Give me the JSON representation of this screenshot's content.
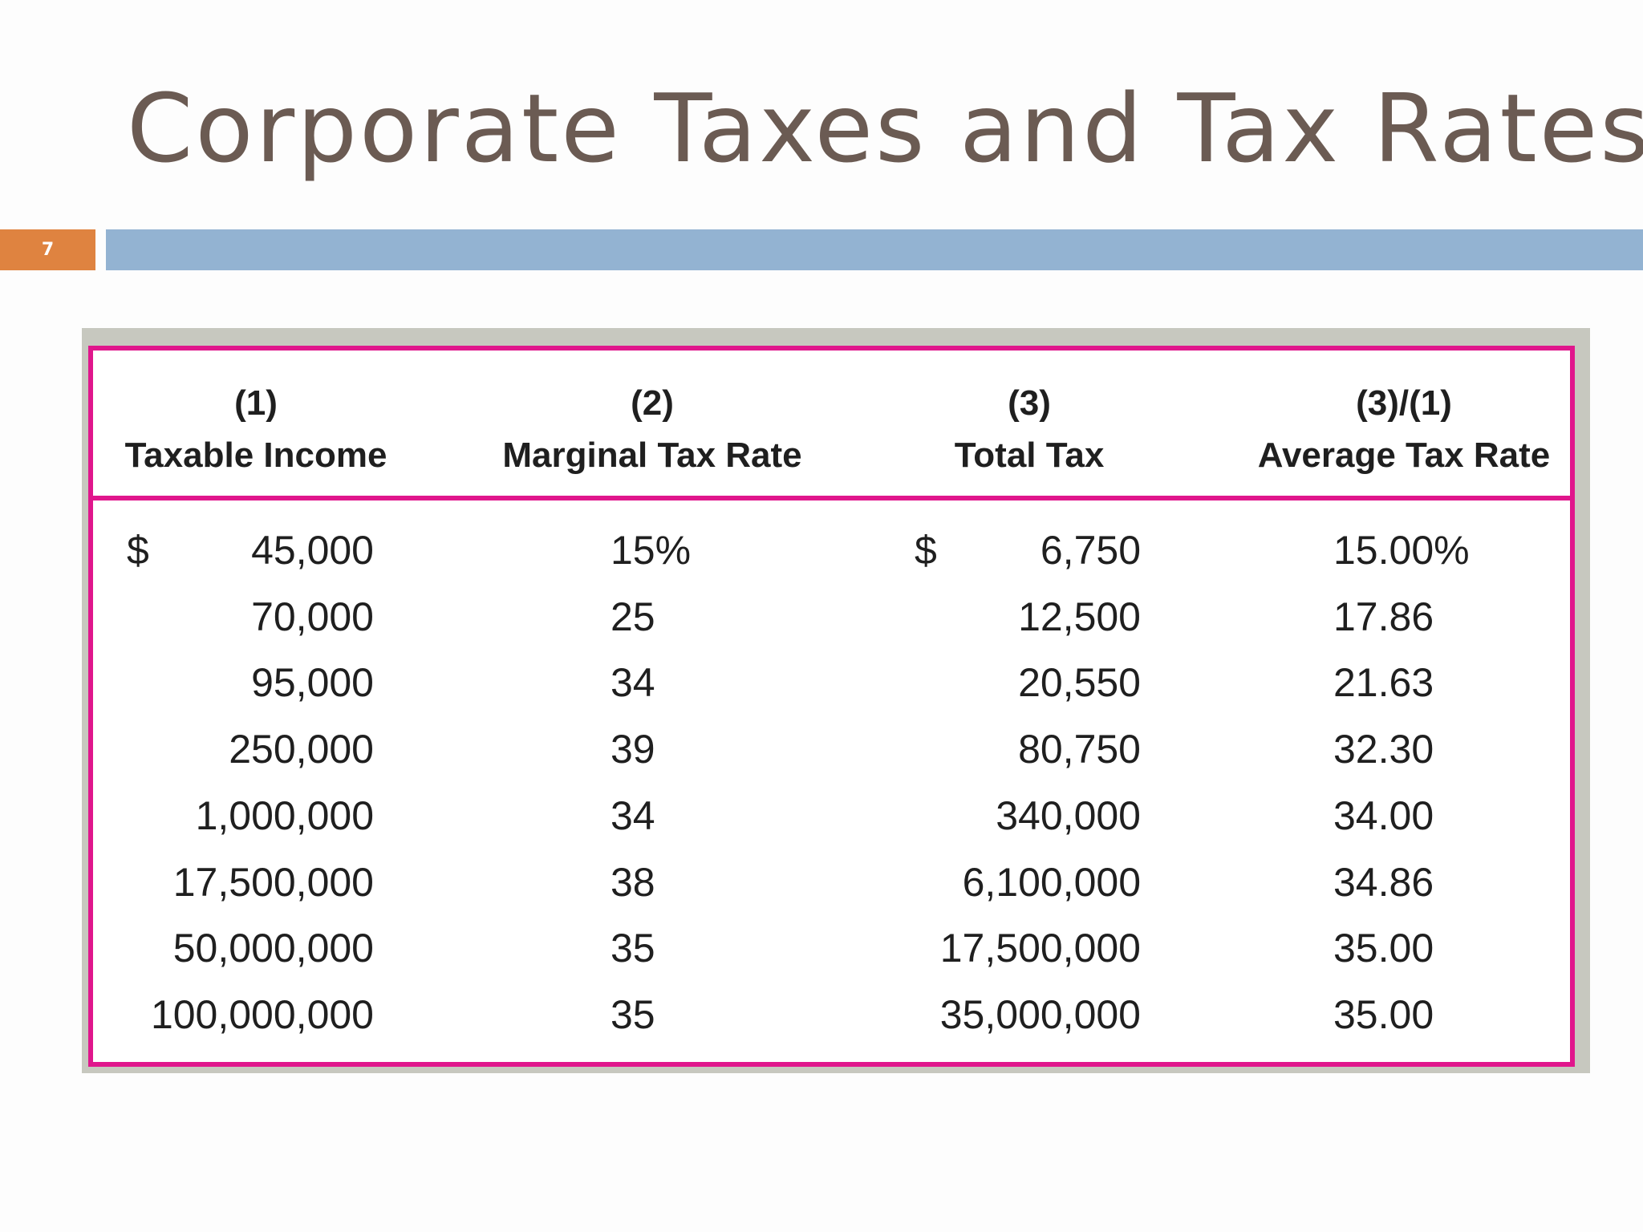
{
  "slide": {
    "title": "Corporate Taxes and Tax Rates",
    "page_number": "7"
  },
  "colors": {
    "title": "#6b5b53",
    "page_badge": "#df8340",
    "accent_bar": "#93b3d2",
    "table_border": "#e0168c",
    "table_frame": "#c7c8bf"
  },
  "table": {
    "columns": [
      {
        "number": "(1)",
        "label": "Taxable Income"
      },
      {
        "number": "(2)",
        "label": "Marginal Tax Rate"
      },
      {
        "number": "(3)",
        "label": "Total Tax"
      },
      {
        "number": "(3)/(1)",
        "label": "Average Tax Rate"
      }
    ],
    "currency_symbol": "$",
    "rows": [
      {
        "taxable_income": "45,000",
        "marginal_rate": "15%",
        "total_tax": "6,750",
        "average_rate": "15.00%"
      },
      {
        "taxable_income": "70,000",
        "marginal_rate": "25",
        "total_tax": "12,500",
        "average_rate": "17.86"
      },
      {
        "taxable_income": "95,000",
        "marginal_rate": "34",
        "total_tax": "20,550",
        "average_rate": "21.63"
      },
      {
        "taxable_income": "250,000",
        "marginal_rate": "39",
        "total_tax": "80,750",
        "average_rate": "32.30"
      },
      {
        "taxable_income": "1,000,000",
        "marginal_rate": "34",
        "total_tax": "340,000",
        "average_rate": "34.00"
      },
      {
        "taxable_income": "17,500,000",
        "marginal_rate": "38",
        "total_tax": "6,100,000",
        "average_rate": "34.86"
      },
      {
        "taxable_income": "50,000,000",
        "marginal_rate": "35",
        "total_tax": "17,500,000",
        "average_rate": "35.00"
      },
      {
        "taxable_income": "100,000,000",
        "marginal_rate": "35",
        "total_tax": "35,000,000",
        "average_rate": "35.00"
      }
    ]
  }
}
